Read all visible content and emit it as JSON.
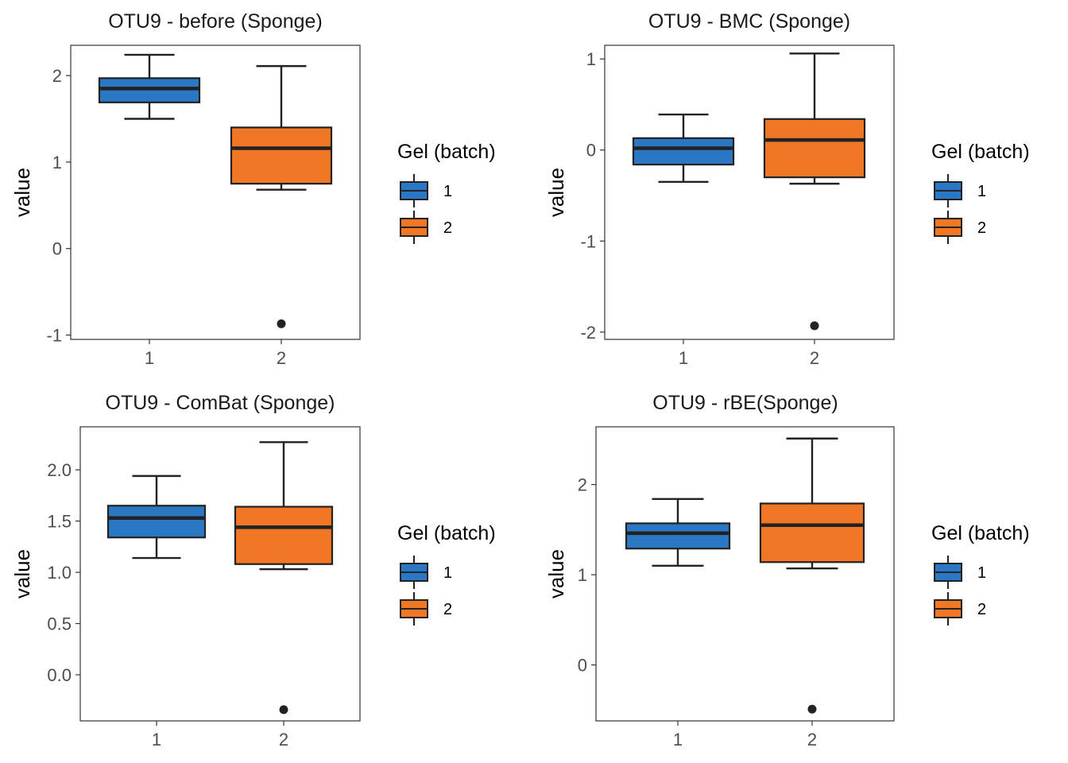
{
  "chart_data": [
    {
      "type": "box",
      "title": "OTU9 - before (Sponge)",
      "xlabel": "",
      "ylabel": "value",
      "categories": [
        "1",
        "2"
      ],
      "ylim": [
        -1.05,
        2.35
      ],
      "yticks": [
        -1,
        0,
        1,
        2
      ],
      "ytick_labels": [
        "-1",
        "0",
        "1",
        "2"
      ],
      "legend": {
        "title": "Gel (batch)",
        "position": "right",
        "entries": [
          "1",
          "2"
        ]
      },
      "boxes": [
        {
          "category": "1",
          "whisker_low": 1.5,
          "q1": 1.69,
          "median": 1.85,
          "q3": 1.97,
          "whisker_high": 2.24,
          "outliers": []
        },
        {
          "category": "2",
          "whisker_low": 0.68,
          "q1": 0.75,
          "median": 1.16,
          "q3": 1.4,
          "whisker_high": 2.11,
          "outliers": [
            -0.87
          ]
        }
      ]
    },
    {
      "type": "box",
      "title": "OTU9 - BMC (Sponge)",
      "xlabel": "",
      "ylabel": "value",
      "categories": [
        "1",
        "2"
      ],
      "ylim": [
        -2.08,
        1.15
      ],
      "yticks": [
        -2,
        -1,
        0,
        1
      ],
      "ytick_labels": [
        "-2",
        "-1",
        "0",
        "1"
      ],
      "legend": {
        "title": "Gel (batch)",
        "position": "right",
        "entries": [
          "1",
          "2"
        ]
      },
      "boxes": [
        {
          "category": "1",
          "whisker_low": -0.35,
          "q1": -0.16,
          "median": 0.02,
          "q3": 0.13,
          "whisker_high": 0.39,
          "outliers": []
        },
        {
          "category": "2",
          "whisker_low": -0.37,
          "q1": -0.3,
          "median": 0.11,
          "q3": 0.34,
          "whisker_high": 1.06,
          "outliers": [
            -1.93
          ]
        }
      ]
    },
    {
      "type": "box",
      "title": "OTU9 - ComBat (Sponge)",
      "xlabel": "",
      "ylabel": "value",
      "categories": [
        "1",
        "2"
      ],
      "ylim": [
        -0.45,
        2.42
      ],
      "yticks": [
        0,
        0.5,
        1,
        1.5,
        2
      ],
      "ytick_labels": [
        "0.0",
        "0.5",
        "1.0",
        "1.5",
        "2.0"
      ],
      "legend": {
        "title": "Gel (batch)",
        "position": "right",
        "entries": [
          "1",
          "2"
        ]
      },
      "boxes": [
        {
          "category": "1",
          "whisker_low": 1.14,
          "q1": 1.34,
          "median": 1.53,
          "q3": 1.65,
          "whisker_high": 1.94,
          "outliers": []
        },
        {
          "category": "2",
          "whisker_low": 1.03,
          "q1": 1.08,
          "median": 1.44,
          "q3": 1.64,
          "whisker_high": 2.27,
          "outliers": [
            -0.34
          ]
        }
      ]
    },
    {
      "type": "box",
      "title": "OTU9 - rBE(Sponge)",
      "xlabel": "",
      "ylabel": "value",
      "categories": [
        "1",
        "2"
      ],
      "ylim": [
        -0.62,
        2.64
      ],
      "yticks": [
        0,
        1,
        2
      ],
      "ytick_labels": [
        "0",
        "1",
        "2"
      ],
      "legend": {
        "title": "Gel (batch)",
        "position": "right",
        "entries": [
          "1",
          "2"
        ]
      },
      "boxes": [
        {
          "category": "1",
          "whisker_low": 1.1,
          "q1": 1.29,
          "median": 1.46,
          "q3": 1.57,
          "whisker_high": 1.84,
          "outliers": []
        },
        {
          "category": "2",
          "whisker_low": 1.07,
          "q1": 1.14,
          "median": 1.55,
          "q3": 1.79,
          "whisker_high": 2.51,
          "outliers": [
            -0.49
          ]
        }
      ]
    }
  ],
  "colors": {
    "batch_1": "#2a78c4",
    "batch_2": "#f07723",
    "outline": "#222222",
    "panel_border": "#333333",
    "tick_text": "#4d4d4d",
    "title_text": "#1a1a1a"
  }
}
